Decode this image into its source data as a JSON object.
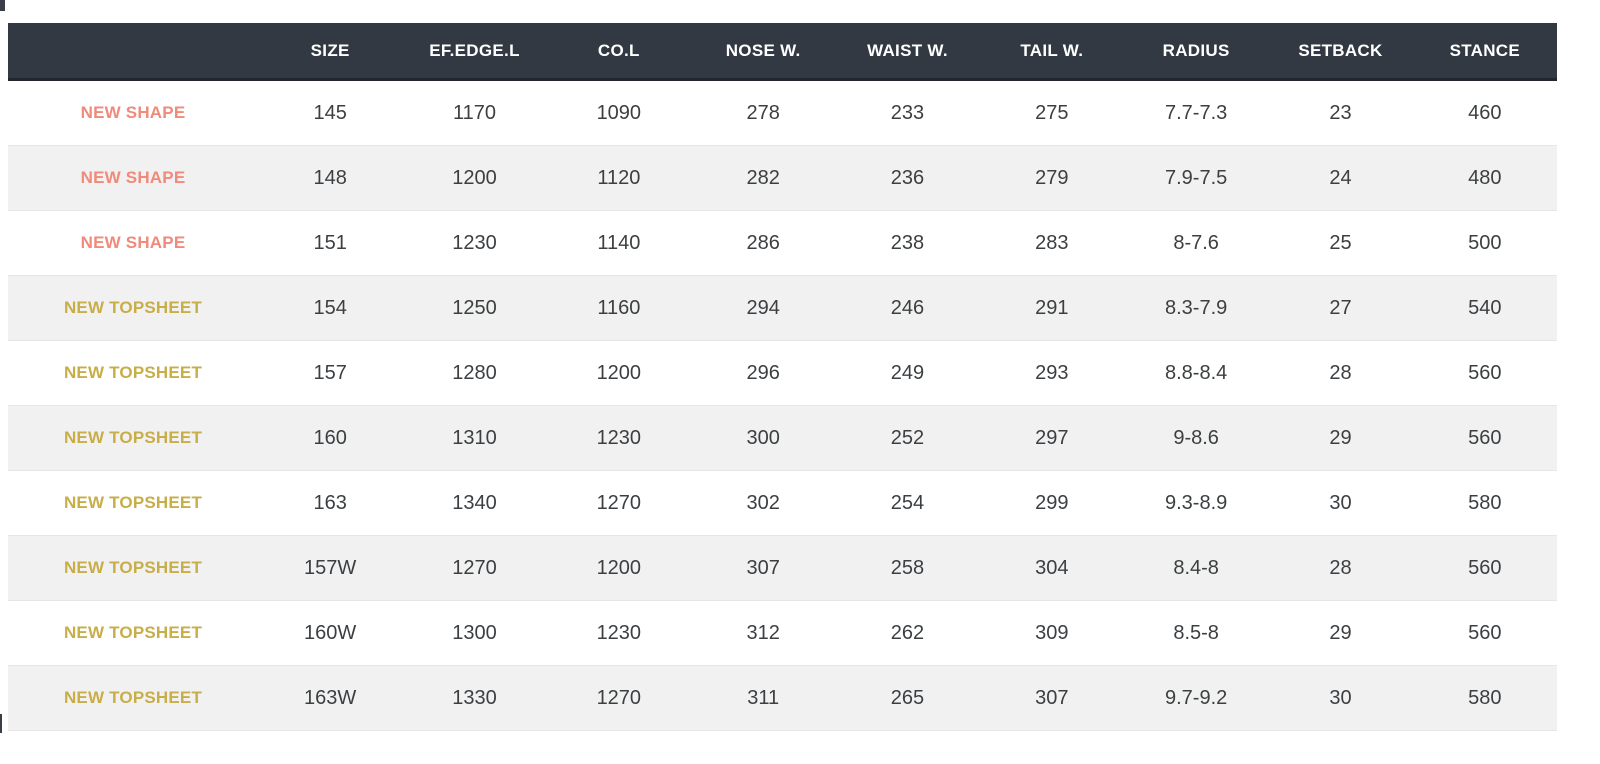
{
  "chart_data": {
    "type": "table",
    "columns": [
      "",
      "SIZE",
      "EF.EDGE.L",
      "CO.L",
      "NOSE W.",
      "WAIST W.",
      "TAIL W.",
      "RADIUS",
      "SETBACK",
      "STANCE"
    ],
    "rows": [
      {
        "tag": "NEW SHAPE",
        "tag_color": "#F08A7B",
        "cells": [
          "145",
          "1170",
          "1090",
          "278",
          "233",
          "275",
          "7.7-7.3",
          "23",
          "460"
        ]
      },
      {
        "tag": "NEW SHAPE",
        "tag_color": "#F08A7B",
        "cells": [
          "148",
          "1200",
          "1120",
          "282",
          "236",
          "279",
          "7.9-7.5",
          "24",
          "480"
        ]
      },
      {
        "tag": "NEW SHAPE",
        "tag_color": "#F08A7B",
        "cells": [
          "151",
          "1230",
          "1140",
          "286",
          "238",
          "283",
          "8-7.6",
          "25",
          "500"
        ]
      },
      {
        "tag": "NEW TOPSHEET",
        "tag_color": "#C8AE48",
        "cells": [
          "154",
          "1250",
          "1160",
          "294",
          "246",
          "291",
          "8.3-7.9",
          "27",
          "540"
        ]
      },
      {
        "tag": "NEW TOPSHEET",
        "tag_color": "#C8AE48",
        "cells": [
          "157",
          "1280",
          "1200",
          "296",
          "249",
          "293",
          "8.8-8.4",
          "28",
          "560"
        ]
      },
      {
        "tag": "NEW TOPSHEET",
        "tag_color": "#C8AE48",
        "cells": [
          "160",
          "1310",
          "1230",
          "300",
          "252",
          "297",
          "9-8.6",
          "29",
          "560"
        ]
      },
      {
        "tag": "NEW TOPSHEET",
        "tag_color": "#C8AE48",
        "cells": [
          "163",
          "1340",
          "1270",
          "302",
          "254",
          "299",
          "9.3-8.9",
          "30",
          "580"
        ]
      },
      {
        "tag": "NEW TOPSHEET",
        "tag_color": "#C8AE48",
        "cells": [
          "157W",
          "1270",
          "1200",
          "307",
          "258",
          "304",
          "8.4-8",
          "28",
          "560"
        ]
      },
      {
        "tag": "NEW TOPSHEET",
        "tag_color": "#C8AE48",
        "cells": [
          "160W",
          "1300",
          "1230",
          "312",
          "262",
          "309",
          "8.5-8",
          "29",
          "560"
        ]
      },
      {
        "tag": "NEW TOPSHEET",
        "tag_color": "#C8AE48",
        "cells": [
          "163W",
          "1330",
          "1270",
          "311",
          "265",
          "307",
          "9.7-9.2",
          "30",
          "580"
        ]
      }
    ],
    "layout": {
      "zebra_striping": true,
      "header_position": "top"
    }
  },
  "colors": {
    "header_bg": "#333943",
    "header_text": "#FFFFFF",
    "header_border": "#23272D",
    "row_alt_bg": "#F1F1F1",
    "row_bg": "#FFFFFF",
    "cell_text": "#3C3F41",
    "tag_new_shape": "#F08A7B",
    "tag_new_topsheet": "#C8AE48"
  }
}
